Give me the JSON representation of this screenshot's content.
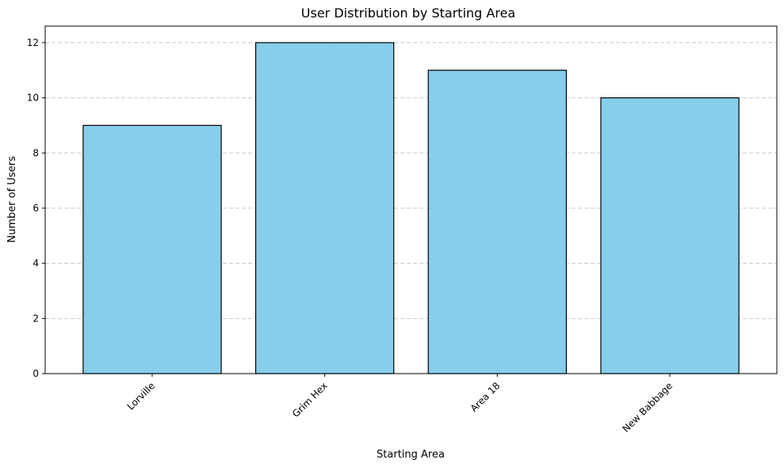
{
  "chart_data": {
    "type": "bar",
    "title": "User Distribution by Starting Area",
    "xlabel": "Starting Area",
    "ylabel": "Number of Users",
    "categories": [
      "Lorville",
      "Grim Hex",
      "Area 18",
      "New Babbage"
    ],
    "values": [
      9,
      12,
      11,
      10
    ],
    "ylim": [
      0,
      12.6
    ],
    "yticks": [
      0,
      2,
      4,
      6,
      8,
      10,
      12
    ],
    "grid": "y-dashed",
    "bar_color": "#87ceeb",
    "bar_edge_color": "#000000",
    "grid_color": "#c8c8c8",
    "xtick_rotation": 45
  }
}
